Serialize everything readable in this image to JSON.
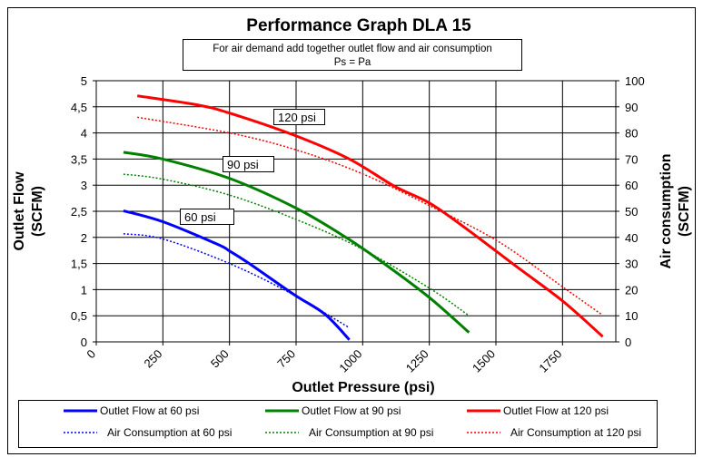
{
  "chart_data": {
    "type": "line",
    "title": "Performance Graph DLA 15",
    "subtitle": [
      "For air demand add together outlet flow and air consumption",
      "Ps = Pa"
    ],
    "xlabel": "Outlet Pressure (psi)",
    "ylabel": "Outlet Flow (SCFM)",
    "ylabel_right": "Air consumption (SCFM)",
    "xlim": [
      0,
      1950
    ],
    "ylim": [
      0,
      5
    ],
    "ylim_right": [
      0,
      100
    ],
    "x_ticks": [
      "0",
      "250",
      "500",
      "750",
      "1000",
      "1250",
      "1500",
      "1750"
    ],
    "x_tick_values": [
      0,
      250,
      500,
      750,
      1000,
      1250,
      1500,
      1750
    ],
    "y_ticks": [
      "0",
      "0,5",
      "1",
      "1,5",
      "2",
      "2,5",
      "3",
      "3,5",
      "4",
      "4,5",
      "5"
    ],
    "y_tick_values": [
      0,
      0.5,
      1,
      1.5,
      2,
      2.5,
      3,
      3.5,
      4,
      4.5,
      5
    ],
    "y_ticks_right": [
      "0",
      "10",
      "20",
      "30",
      "40",
      "50",
      "60",
      "70",
      "80",
      "90",
      "100"
    ],
    "grid": true,
    "legend_position": "bottom",
    "annotations": [
      {
        "text": "120 psi",
        "series": "Outlet Flow at 120 psi"
      },
      {
        "text": "90 psi",
        "series": "Outlet Flow at 90 psi"
      },
      {
        "text": "60 psi",
        "series": "Outlet Flow at 60 psi"
      }
    ],
    "series": [
      {
        "name": "Outlet Flow at 60 psi",
        "axis": "left",
        "style": "solid",
        "color": "#0000ff",
        "x": [
          102,
          250,
          454,
          500,
          571,
          741,
          858,
          950
        ],
        "y": [
          2.51,
          2.3,
          1.87,
          1.74,
          1.51,
          0.91,
          0.53,
          0.04
        ]
      },
      {
        "name": "Outlet Flow at 90 psi",
        "axis": "left",
        "style": "solid",
        "color": "#008000",
        "x": [
          102,
          250,
          500,
          754,
          937,
          1080,
          1250,
          1399
        ],
        "y": [
          3.63,
          3.5,
          3.13,
          2.55,
          2.0,
          1.5,
          0.85,
          0.18
        ]
      },
      {
        "name": "Outlet Flow at 120 psi",
        "axis": "left",
        "style": "solid",
        "color": "#ff0000",
        "x": [
          154,
          376,
          500,
          741,
          950,
          1119,
          1250,
          1380,
          1575,
          1751,
          1901
        ],
        "y": [
          4.71,
          4.54,
          4.38,
          3.96,
          3.5,
          2.98,
          2.66,
          2.2,
          1.45,
          0.78,
          0.1
        ]
      },
      {
        "name": "Air Consumption at 60 psi",
        "axis": "right",
        "style": "dotted",
        "color": "#0000ff",
        "x": [
          102,
          250,
          500,
          728,
          950
        ],
        "y": [
          41.4,
          39.4,
          30,
          18.7,
          5.4
        ]
      },
      {
        "name": "Air Consumption at 90 psi",
        "axis": "right",
        "style": "dotted",
        "color": "#008000",
        "x": [
          102,
          250,
          500,
          754,
          989,
          1250,
          1399
        ],
        "y": [
          64.2,
          62.3,
          56.2,
          46.7,
          36,
          20.6,
          10
        ]
      },
      {
        "name": "Air Consumption at 120 psi",
        "axis": "right",
        "style": "dotted",
        "color": "#ff0000",
        "x": [
          154,
          500,
          741,
          989,
          1250,
          1511,
          1751,
          1895
        ],
        "y": [
          86,
          80,
          73.8,
          64.8,
          52.2,
          38.3,
          21,
          10.6
        ]
      }
    ]
  }
}
